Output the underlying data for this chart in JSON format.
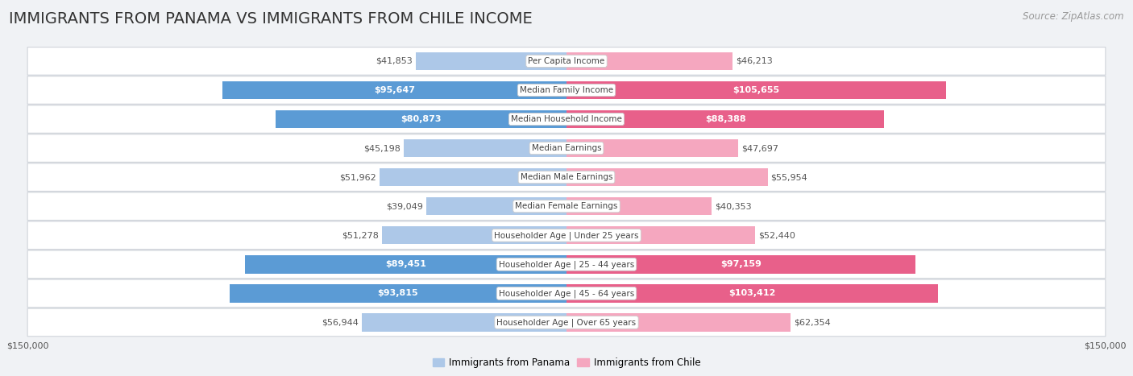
{
  "title": "IMMIGRANTS FROM PANAMA VS IMMIGRANTS FROM CHILE INCOME",
  "source": "Source: ZipAtlas.com",
  "categories": [
    "Per Capita Income",
    "Median Family Income",
    "Median Household Income",
    "Median Earnings",
    "Median Male Earnings",
    "Median Female Earnings",
    "Householder Age | Under 25 years",
    "Householder Age | 25 - 44 years",
    "Householder Age | 45 - 64 years",
    "Householder Age | Over 65 years"
  ],
  "panama_values": [
    41853,
    95647,
    80873,
    45198,
    51962,
    39049,
    51278,
    89451,
    93815,
    56944
  ],
  "chile_values": [
    46213,
    105655,
    88388,
    47697,
    55954,
    40353,
    52440,
    97159,
    103412,
    62354
  ],
  "panama_labels": [
    "$41,853",
    "$95,647",
    "$80,873",
    "$45,198",
    "$51,962",
    "$39,049",
    "$51,278",
    "$89,451",
    "$93,815",
    "$56,944"
  ],
  "chile_labels": [
    "$46,213",
    "$105,655",
    "$88,388",
    "$47,697",
    "$55,954",
    "$40,353",
    "$52,440",
    "$97,159",
    "$103,412",
    "$62,354"
  ],
  "panama_color_light": "#adc8e8",
  "panama_color_dark": "#5b9bd5",
  "chile_color_light": "#f5a7bf",
  "chile_color_dark": "#e8608a",
  "max_value": 150000,
  "background_color": "#f0f2f5",
  "row_bg_color": "#ffffff",
  "title_fontsize": 14,
  "source_fontsize": 8.5,
  "bar_label_fontsize": 8,
  "category_fontsize": 7.5,
  "axis_label_fontsize": 8,
  "legend_fontsize": 8.5,
  "threshold": 65000
}
